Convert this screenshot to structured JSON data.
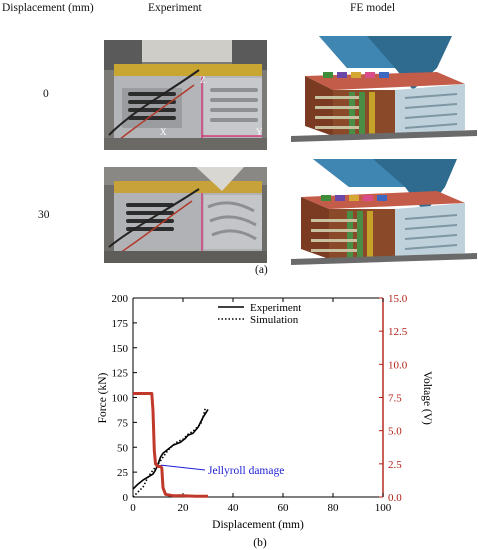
{
  "panel_a": {
    "col_headers": {
      "displacement": "Displacement (mm)",
      "experiment": "Experiment",
      "fe_model": "FE model"
    },
    "rows": [
      {
        "displacement": "0"
      },
      {
        "displacement": "30"
      }
    ],
    "photo_labels": {
      "z": "Z",
      "x": "X",
      "y": "Y"
    },
    "caption": "(a)"
  },
  "panel_b": {
    "caption": "(b)",
    "annotation": "Jellyroll damage",
    "annotation_color": "#1f1fd6",
    "left_axis_color": "#000000",
    "right_axis_color": "#b01e12"
  },
  "chart_data": {
    "type": "line",
    "xlabel": "Displacement (mm)",
    "ylabel": "Force (kN)",
    "y2label": "Voltage (V)",
    "xlim": [
      0,
      100
    ],
    "ylim": [
      0,
      200
    ],
    "y2lim": [
      0,
      15
    ],
    "xticks": [
      0,
      20,
      40,
      60,
      80,
      100
    ],
    "yticks": [
      0,
      25,
      50,
      75,
      100,
      125,
      150,
      175,
      200
    ],
    "y2ticks": [
      "0.0",
      "2.5",
      "5.0",
      "7.5",
      "10.0",
      "12.5",
      "15.0"
    ],
    "legend": {
      "position": "top-center",
      "entries": [
        "Experiment",
        "Simulation"
      ]
    },
    "series": [
      {
        "name": "Experiment",
        "axis": "left",
        "style": "solid",
        "color": "#000000",
        "x": [
          0,
          2,
          4,
          6,
          8,
          9,
          10,
          11,
          12,
          13,
          14,
          15,
          16,
          17,
          18,
          19,
          20,
          21,
          22,
          23,
          24,
          25,
          26,
          27,
          28,
          29,
          30
        ],
        "y": [
          8,
          13,
          17,
          20,
          23,
          27,
          33,
          40,
          44,
          46,
          48,
          50,
          52,
          53,
          54,
          55,
          57,
          59,
          62,
          63,
          64,
          67,
          70,
          75,
          80,
          84,
          88
        ]
      },
      {
        "name": "Simulation",
        "axis": "left",
        "style": "dotted",
        "color": "#000000",
        "x": [
          0,
          2,
          4,
          6,
          8,
          10,
          12,
          14,
          16,
          18,
          20,
          22,
          24,
          26,
          27,
          28,
          29
        ],
        "y": [
          0,
          5,
          10,
          20,
          27,
          33,
          40,
          47,
          52,
          56,
          58,
          63,
          66,
          71,
          73,
          80,
          90
        ]
      },
      {
        "name": "Voltage",
        "axis": "right",
        "style": "solid",
        "color": "#c0392b",
        "x": [
          0,
          2,
          4,
          6,
          7.5,
          8,
          8.5,
          9,
          9.5,
          10,
          11,
          11.5,
          12,
          13,
          16,
          20,
          25,
          30
        ],
        "y": [
          7.8,
          7.8,
          7.8,
          7.8,
          7.8,
          6.5,
          3.5,
          2.5,
          2.4,
          2.3,
          2.3,
          2.2,
          0.7,
          0.2,
          0.1,
          0.1,
          0.05,
          0.05
        ]
      }
    ],
    "annotations": [
      {
        "text": "Jellyroll damage",
        "x": 10,
        "y": 30
      }
    ]
  }
}
